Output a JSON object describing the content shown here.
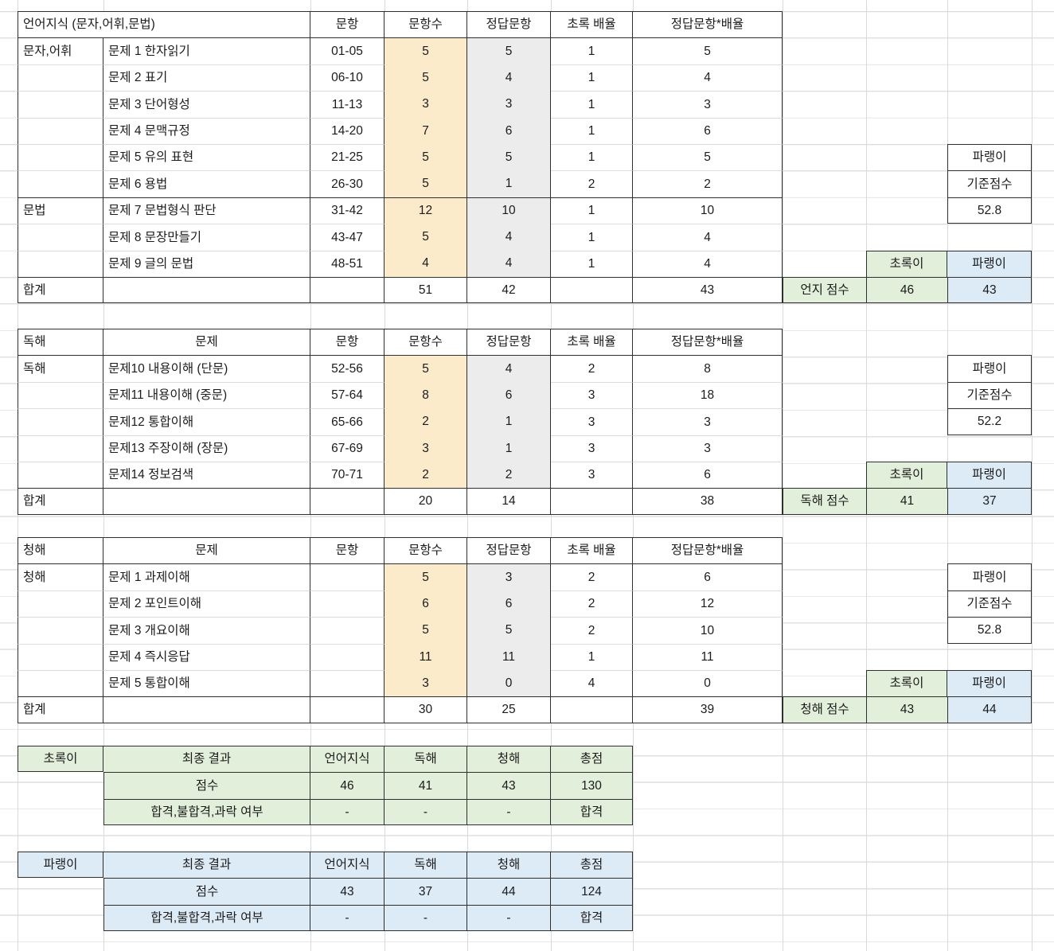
{
  "colors": {
    "yellow": "#FBEBCB",
    "gray": "#ECECEC",
    "green": "#E2EFDA",
    "blue": "#DDEBF7",
    "border": "#2F2F2F"
  },
  "tables": [
    {
      "name": "언어지식",
      "header": {
        "title": "언어지식 (문자,어휘,문법)",
        "cols": [
          "문항",
          "문항수",
          "정답문항",
          "초록 배율",
          "정답문항*배율"
        ]
      },
      "rows": [
        {
          "a": "문자,어휘",
          "b": "문제 1 한자읽기",
          "c": "01-05",
          "d": "5",
          "e": "5",
          "f": "1",
          "g": "5"
        },
        {
          "a": "",
          "b": "문제 2 표기",
          "c": "06-10",
          "d": "5",
          "e": "4",
          "f": "1",
          "g": "4"
        },
        {
          "a": "",
          "b": "문제 3 단어형성",
          "c": "11-13",
          "d": "3",
          "e": "3",
          "f": "1",
          "g": "3"
        },
        {
          "a": "",
          "b": "문제 4 문맥규정",
          "c": "14-20",
          "d": "7",
          "e": "6",
          "f": "1",
          "g": "6"
        },
        {
          "a": "",
          "b": "문제 5 유의 표현",
          "c": "21-25",
          "d": "5",
          "e": "5",
          "f": "1",
          "g": "5"
        },
        {
          "a": "",
          "b": "문제 6 용법",
          "c": "26-30",
          "d": "5",
          "e": "1",
          "f": "2",
          "g": "2"
        },
        {
          "a": "문법",
          "b": "문제 7 문법형식 판단",
          "c": "31-42",
          "d": "12",
          "e": "10",
          "f": "1",
          "g": "10"
        },
        {
          "a": "",
          "b": "문제 8 문장만들기",
          "c": "43-47",
          "d": "5",
          "e": "4",
          "f": "1",
          "g": "4"
        },
        {
          "a": "",
          "b": "문제 9 글의 문법",
          "c": "48-51",
          "d": "4",
          "e": "4",
          "f": "1",
          "g": "4"
        }
      ],
      "total": {
        "label": "합계",
        "d": "51",
        "e": "42",
        "f": "",
        "g": "43"
      },
      "annex": {
        "box": {
          "label": "파랭이",
          "sub": "기준점수",
          "value": "52.8"
        },
        "legend_green": "초록이",
        "legend_blue": "파랭이",
        "score": {
          "label": "언지 점수",
          "green": "46",
          "blue": "43"
        }
      }
    },
    {
      "name": "독해",
      "header": {
        "a": "독해",
        "b": "문제",
        "cols": [
          "문항",
          "문항수",
          "정답문항",
          "초록 배율",
          "정답문항*배율"
        ]
      },
      "rows": [
        {
          "a": "독해",
          "b": "문제10 내용이해 (단문)",
          "c": "52-56",
          "d": "5",
          "e": "4",
          "f": "2",
          "g": "8"
        },
        {
          "a": "",
          "b": "문제11 내용이해 (중문)",
          "c": "57-64",
          "d": "8",
          "e": "6",
          "f": "3",
          "g": "18"
        },
        {
          "a": "",
          "b": "문제12 통합이해",
          "c": "65-66",
          "d": "2",
          "e": "1",
          "f": "3",
          "g": "3"
        },
        {
          "a": "",
          "b": "문제13 주장이해 (장문)",
          "c": "67-69",
          "d": "3",
          "e": "1",
          "f": "3",
          "g": "3"
        },
        {
          "a": "",
          "b": "문제14 정보검색",
          "c": "70-71",
          "d": "2",
          "e": "2",
          "f": "3",
          "g": "6"
        }
      ],
      "total": {
        "label": "합계",
        "d": "20",
        "e": "14",
        "f": "",
        "g": "38"
      },
      "annex": {
        "box": {
          "label": "파랭이",
          "sub": "기준점수",
          "value": "52.2"
        },
        "legend_green": "초록이",
        "legend_blue": "파랭이",
        "score": {
          "label": "독해 점수",
          "green": "41",
          "blue": "37"
        }
      }
    },
    {
      "name": "청해",
      "header": {
        "a": "청해",
        "b": "문제",
        "cols": [
          "문항",
          "문항수",
          "정답문항",
          "초록 배율",
          "정답문항*배율"
        ]
      },
      "rows": [
        {
          "a": "청해",
          "b": "문제 1 과제이해",
          "c": "",
          "d": "5",
          "e": "3",
          "f": "2",
          "g": "6"
        },
        {
          "a": "",
          "b": "문제 2 포인트이해",
          "c": "",
          "d": "6",
          "e": "6",
          "f": "2",
          "g": "12"
        },
        {
          "a": "",
          "b": "문제 3 개요이해",
          "c": "",
          "d": "5",
          "e": "5",
          "f": "2",
          "g": "10"
        },
        {
          "a": "",
          "b": "문제 4 즉시응답",
          "c": "",
          "d": "11",
          "e": "11",
          "f": "1",
          "g": "11"
        },
        {
          "a": "",
          "b": "문제 5 통합이해",
          "c": "",
          "d": "3",
          "e": "0",
          "f": "4",
          "g": "0"
        }
      ],
      "total": {
        "label": "합계",
        "d": "30",
        "e": "25",
        "f": "",
        "g": "39"
      },
      "annex": {
        "box": {
          "label": "파랭이",
          "sub": "기준점수",
          "value": "52.8"
        },
        "legend_green": "초록이",
        "legend_blue": "파랭이",
        "score": {
          "label": "청해 점수",
          "green": "43",
          "blue": "44"
        }
      }
    }
  ],
  "summaries": [
    {
      "label": "초록이",
      "header": [
        "최종 결과",
        "언어지식",
        "독해",
        "청해",
        "총점"
      ],
      "rows": [
        [
          "점수",
          "46",
          "41",
          "43",
          "130"
        ],
        [
          "합격,불합격,과락 여부",
          "-",
          "-",
          "-",
          "합격"
        ]
      ]
    },
    {
      "label": "파랭이",
      "header": [
        "최종 결과",
        "언어지식",
        "독해",
        "청해",
        "총점"
      ],
      "rows": [
        [
          "점수",
          "43",
          "37",
          "44",
          "124"
        ],
        [
          "합격,불합격,과락 여부",
          "-",
          "-",
          "-",
          "합격"
        ]
      ]
    }
  ]
}
